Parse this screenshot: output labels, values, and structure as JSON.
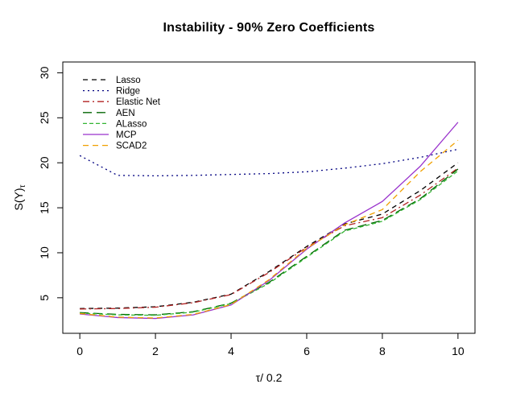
{
  "title": "Instability - 90% Zero Coefficients",
  "chart_data": {
    "type": "line",
    "title": "Instability - 90% Zero Coefficients",
    "xlabel": "τ/ 0.2",
    "ylabel_base": "S(Y)",
    "ylabel_sub": "τ",
    "x": [
      0,
      1,
      2,
      3,
      4,
      5,
      6,
      7,
      8,
      9,
      10
    ],
    "xticks": [
      0,
      2,
      4,
      6,
      8,
      10
    ],
    "yticks": [
      5,
      10,
      15,
      20,
      25,
      30
    ],
    "xlim": [
      -0.45,
      10.45
    ],
    "ylim": [
      1.05,
      31.2
    ],
    "grid": false,
    "legend_position": "top-left",
    "axis_color": "#000000",
    "background_color": "#ffffff",
    "series": [
      {
        "name": "Lasso",
        "color": "#000000",
        "dash": "6,5",
        "values": [
          3.8,
          3.85,
          4.0,
          4.5,
          5.4,
          7.9,
          10.7,
          13.2,
          14.3,
          16.9,
          20.0
        ]
      },
      {
        "name": "Ridge",
        "color": "#000080",
        "dash": "2,4",
        "values": [
          20.8,
          18.6,
          18.55,
          18.6,
          18.7,
          18.8,
          19.0,
          19.4,
          19.9,
          20.6,
          21.5
        ]
      },
      {
        "name": "Elastic Net",
        "color": "#B22222",
        "dash": "8,4,2,4",
        "values": [
          3.75,
          3.8,
          3.95,
          4.45,
          5.35,
          7.8,
          10.6,
          13.0,
          13.9,
          16.4,
          19.4
        ]
      },
      {
        "name": "AEN",
        "color": "#006400",
        "dash": "11,6",
        "values": [
          3.35,
          3.15,
          3.1,
          3.45,
          4.4,
          6.7,
          9.6,
          12.5,
          13.6,
          16.0,
          19.3
        ]
      },
      {
        "name": "ALasso",
        "color": "#33B533",
        "dash": "5,3",
        "values": [
          3.3,
          3.1,
          3.05,
          3.4,
          4.35,
          6.6,
          9.5,
          12.4,
          13.5,
          15.9,
          19.1
        ]
      },
      {
        "name": "MCP",
        "color": "#9932CC",
        "dash": "",
        "values": [
          3.2,
          2.8,
          2.7,
          3.1,
          4.2,
          6.9,
          10.4,
          13.3,
          15.7,
          19.6,
          24.5
        ]
      },
      {
        "name": "SCAD2",
        "color": "#F0A000",
        "dash": "7,5",
        "values": [
          3.25,
          2.85,
          2.75,
          3.15,
          4.25,
          7.0,
          10.5,
          13.1,
          14.8,
          19.0,
          22.5
        ]
      }
    ]
  }
}
